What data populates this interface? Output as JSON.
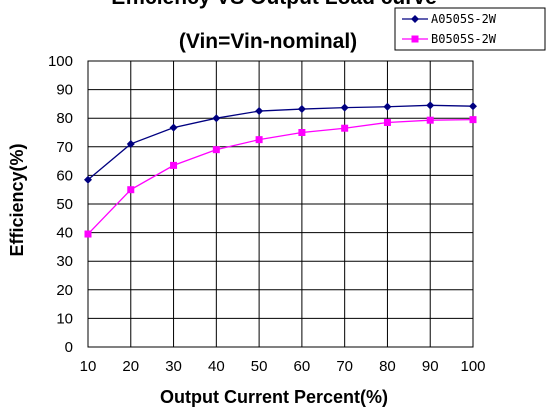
{
  "chart_data": {
    "type": "line",
    "title": "Efficiency VS Output Load curve",
    "subtitle": "(Vin=Vin-nominal)",
    "xlabel": "Output Current Percent(%)",
    "ylabel": "Efficiency(%)",
    "x": [
      10,
      20,
      30,
      40,
      50,
      60,
      70,
      80,
      90,
      100
    ],
    "xlim": [
      10,
      100
    ],
    "ylim": [
      0,
      100
    ],
    "xticks": [
      10,
      20,
      30,
      40,
      50,
      60,
      70,
      80,
      90,
      100
    ],
    "yticks": [
      0,
      10,
      20,
      30,
      40,
      50,
      60,
      70,
      80,
      90,
      100
    ],
    "grid": true,
    "legend_position": "top-right",
    "series": [
      {
        "name": "A0505S-2W",
        "color": "#000080",
        "marker": "diamond",
        "values": [
          58.5,
          71,
          76.7,
          80,
          82.5,
          83.2,
          83.7,
          84,
          84.5,
          84.2
        ]
      },
      {
        "name": "B0505S-2W",
        "color": "#ff00ff",
        "marker": "square",
        "values": [
          39.5,
          55,
          63.5,
          69,
          72.5,
          75,
          76.5,
          78.5,
          79.3,
          79.5
        ]
      }
    ]
  }
}
